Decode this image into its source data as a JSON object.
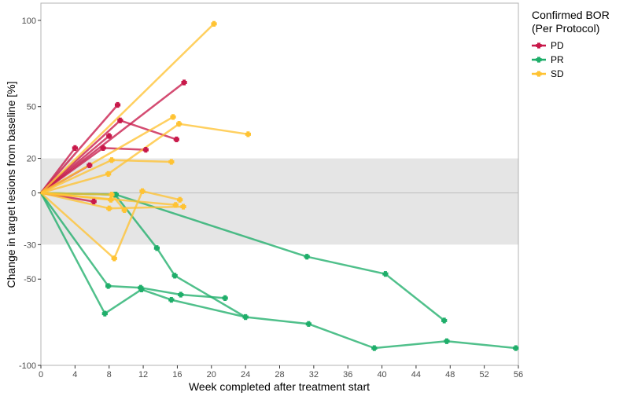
{
  "chart_data": {
    "type": "line",
    "xlabel": "Week completed after treatment start",
    "ylabel": "Change in target lesions from baseline [%]",
    "xlim": [
      0,
      56
    ],
    "ylim": [
      -100,
      110
    ],
    "xticks": [
      0,
      4,
      8,
      12,
      16,
      20,
      24,
      28,
      32,
      36,
      40,
      44,
      48,
      52,
      56
    ],
    "yticks": [
      -100,
      -50,
      -30,
      0,
      20,
      50,
      100
    ],
    "reference_band": [
      -30,
      20
    ],
    "reference_line": 0,
    "grid": false,
    "legend": {
      "title_line1": "Confirmed BOR",
      "title_line2": "(Per Protocol)",
      "placement": "right",
      "entries": [
        {
          "label": "PD",
          "color": "#C8194A"
        },
        {
          "label": "PR",
          "color": "#1FAE6A"
        },
        {
          "label": "SD",
          "color": "#FFC333"
        }
      ]
    },
    "series": [
      {
        "group": "PD",
        "color": "#C8194A",
        "points": [
          [
            0,
            0
          ],
          [
            6.2,
            -5
          ]
        ]
      },
      {
        "group": "PD",
        "color": "#C8194A",
        "points": [
          [
            0,
            0
          ],
          [
            5.7,
            16
          ]
        ]
      },
      {
        "group": "PD",
        "color": "#C8194A",
        "points": [
          [
            0,
            0
          ],
          [
            4,
            26
          ]
        ]
      },
      {
        "group": "PD",
        "color": "#C8194A",
        "points": [
          [
            0,
            0
          ],
          [
            7.3,
            26
          ],
          [
            12.3,
            25
          ]
        ]
      },
      {
        "group": "PD",
        "color": "#C8194A",
        "points": [
          [
            0,
            0
          ],
          [
            8,
            33
          ]
        ]
      },
      {
        "group": "PD",
        "color": "#C8194A",
        "points": [
          [
            0,
            0
          ],
          [
            9.3,
            42
          ],
          [
            15.9,
            31
          ]
        ]
      },
      {
        "group": "PD",
        "color": "#C8194A",
        "points": [
          [
            0,
            0
          ],
          [
            9,
            51
          ]
        ]
      },
      {
        "group": "PD",
        "color": "#C8194A",
        "points": [
          [
            0,
            0
          ],
          [
            16.8,
            64
          ]
        ]
      },
      {
        "group": "PR",
        "color": "#1FAE6A",
        "points": [
          [
            0,
            0
          ],
          [
            7.5,
            -70
          ],
          [
            11.8,
            -56
          ],
          [
            15.3,
            -62
          ],
          [
            24,
            -72
          ]
        ]
      },
      {
        "group": "PR",
        "color": "#1FAE6A",
        "points": [
          [
            0,
            0
          ],
          [
            7.9,
            -54
          ],
          [
            11.7,
            -55
          ],
          [
            16.4,
            -59
          ],
          [
            21.6,
            -61
          ]
        ]
      },
      {
        "group": "PR",
        "color": "#1FAE6A",
        "points": [
          [
            0,
            0
          ],
          [
            8.7,
            -1
          ],
          [
            13.6,
            -32
          ],
          [
            15.7,
            -48
          ],
          [
            24,
            -72
          ],
          [
            31.4,
            -76
          ],
          [
            39.1,
            -90
          ],
          [
            47.6,
            -86
          ],
          [
            55.7,
            -90
          ]
        ]
      },
      {
        "group": "PR",
        "color": "#1FAE6A",
        "points": [
          [
            0,
            0
          ],
          [
            8.8,
            -1
          ],
          [
            31.2,
            -37
          ],
          [
            40.4,
            -47
          ],
          [
            47.3,
            -74
          ]
        ]
      },
      {
        "group": "SD",
        "color": "#FFC333",
        "points": [
          [
            0,
            0
          ],
          [
            20.3,
            98
          ]
        ]
      },
      {
        "group": "SD",
        "color": "#FFC333",
        "points": [
          [
            0,
            0
          ],
          [
            15.5,
            44
          ]
        ]
      },
      {
        "group": "SD",
        "color": "#FFC333",
        "points": [
          [
            0,
            0
          ],
          [
            8.3,
            19
          ],
          [
            15.3,
            18
          ]
        ]
      },
      {
        "group": "SD",
        "color": "#FFC333",
        "points": [
          [
            0,
            0
          ],
          [
            7.9,
            11
          ],
          [
            16.2,
            40
          ],
          [
            24.3,
            34
          ]
        ]
      },
      {
        "group": "SD",
        "color": "#FFC333",
        "points": [
          [
            0,
            0
          ],
          [
            8.6,
            -38
          ],
          [
            11.9,
            1
          ],
          [
            16.3,
            -4
          ]
        ]
      },
      {
        "group": "SD",
        "color": "#FFC333",
        "points": [
          [
            0,
            0
          ],
          [
            8,
            -9
          ],
          [
            16.7,
            -8
          ]
        ]
      },
      {
        "group": "SD",
        "color": "#FFC333",
        "points": [
          [
            0,
            0
          ],
          [
            8.3,
            -1
          ],
          [
            9.8,
            -10
          ]
        ]
      },
      {
        "group": "SD",
        "color": "#FFC333",
        "points": [
          [
            0,
            0
          ],
          [
            15.8,
            -7
          ]
        ]
      },
      {
        "group": "SD",
        "color": "#FFC333",
        "points": [
          [
            0,
            0
          ],
          [
            8.2,
            -4
          ]
        ]
      }
    ]
  }
}
